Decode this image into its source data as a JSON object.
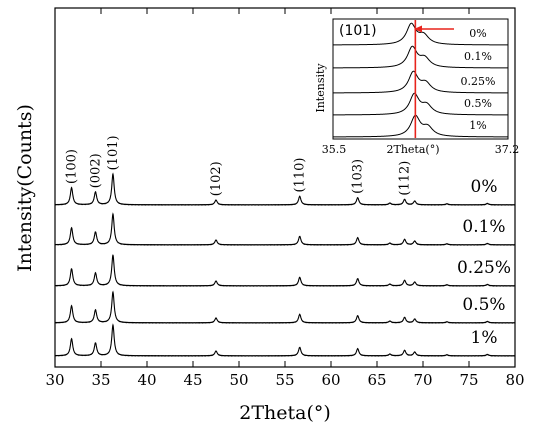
{
  "chart_data": [
    {
      "type": "line",
      "title": "",
      "xlabel": "2Theta(°)",
      "ylabel": "Intensity(Counts)",
      "xlim": [
        30,
        80
      ],
      "xticks": [
        30,
        35,
        40,
        45,
        50,
        55,
        60,
        65,
        70,
        75,
        80
      ],
      "yticks_shown": false,
      "series": [
        {
          "name": "0%"
        },
        {
          "name": "0.1%"
        },
        {
          "name": "0.25%"
        },
        {
          "name": "0.5%"
        },
        {
          "name": "1%"
        }
      ],
      "peaks": [
        {
          "label": "(100)",
          "x": 31.8,
          "height": 1.0
        },
        {
          "label": "(002)",
          "x": 34.4,
          "height": 0.75
        },
        {
          "label": "(101)",
          "x": 36.3,
          "height": 1.8
        },
        {
          "label": "(102)",
          "x": 47.5,
          "height": 0.28
        },
        {
          "label": "(110)",
          "x": 56.6,
          "height": 0.5
        },
        {
          "label": "(103)",
          "x": 62.9,
          "height": 0.42
        },
        {
          "label": "(112)",
          "x": 68.0,
          "height": 0.32
        }
      ],
      "minor_peaks": [
        {
          "x": 66.4,
          "height": 0.1
        },
        {
          "x": 69.1,
          "height": 0.22
        },
        {
          "x": 72.6,
          "height": 0.06
        },
        {
          "x": 77.0,
          "height": 0.08
        }
      ]
    },
    {
      "type": "line",
      "title": "(101)",
      "xlabel": "2Theta(°)",
      "ylabel": "Intensity",
      "xlim": [
        35.5,
        37.2
      ],
      "xtick_labels": [
        "35.5",
        "37.2"
      ],
      "series": [
        {
          "name": "0%",
          "peak_x": 36.26
        },
        {
          "name": "0.1%",
          "peak_x": 36.27
        },
        {
          "name": "0.25%",
          "peak_x": 36.28
        },
        {
          "name": "0.5%",
          "peak_x": 36.29
        },
        {
          "name": "1%",
          "peak_x": 36.3
        }
      ],
      "reference_line_x": 36.3,
      "reference_color": "#e8231c",
      "arrow_color": "#e8231c"
    }
  ]
}
